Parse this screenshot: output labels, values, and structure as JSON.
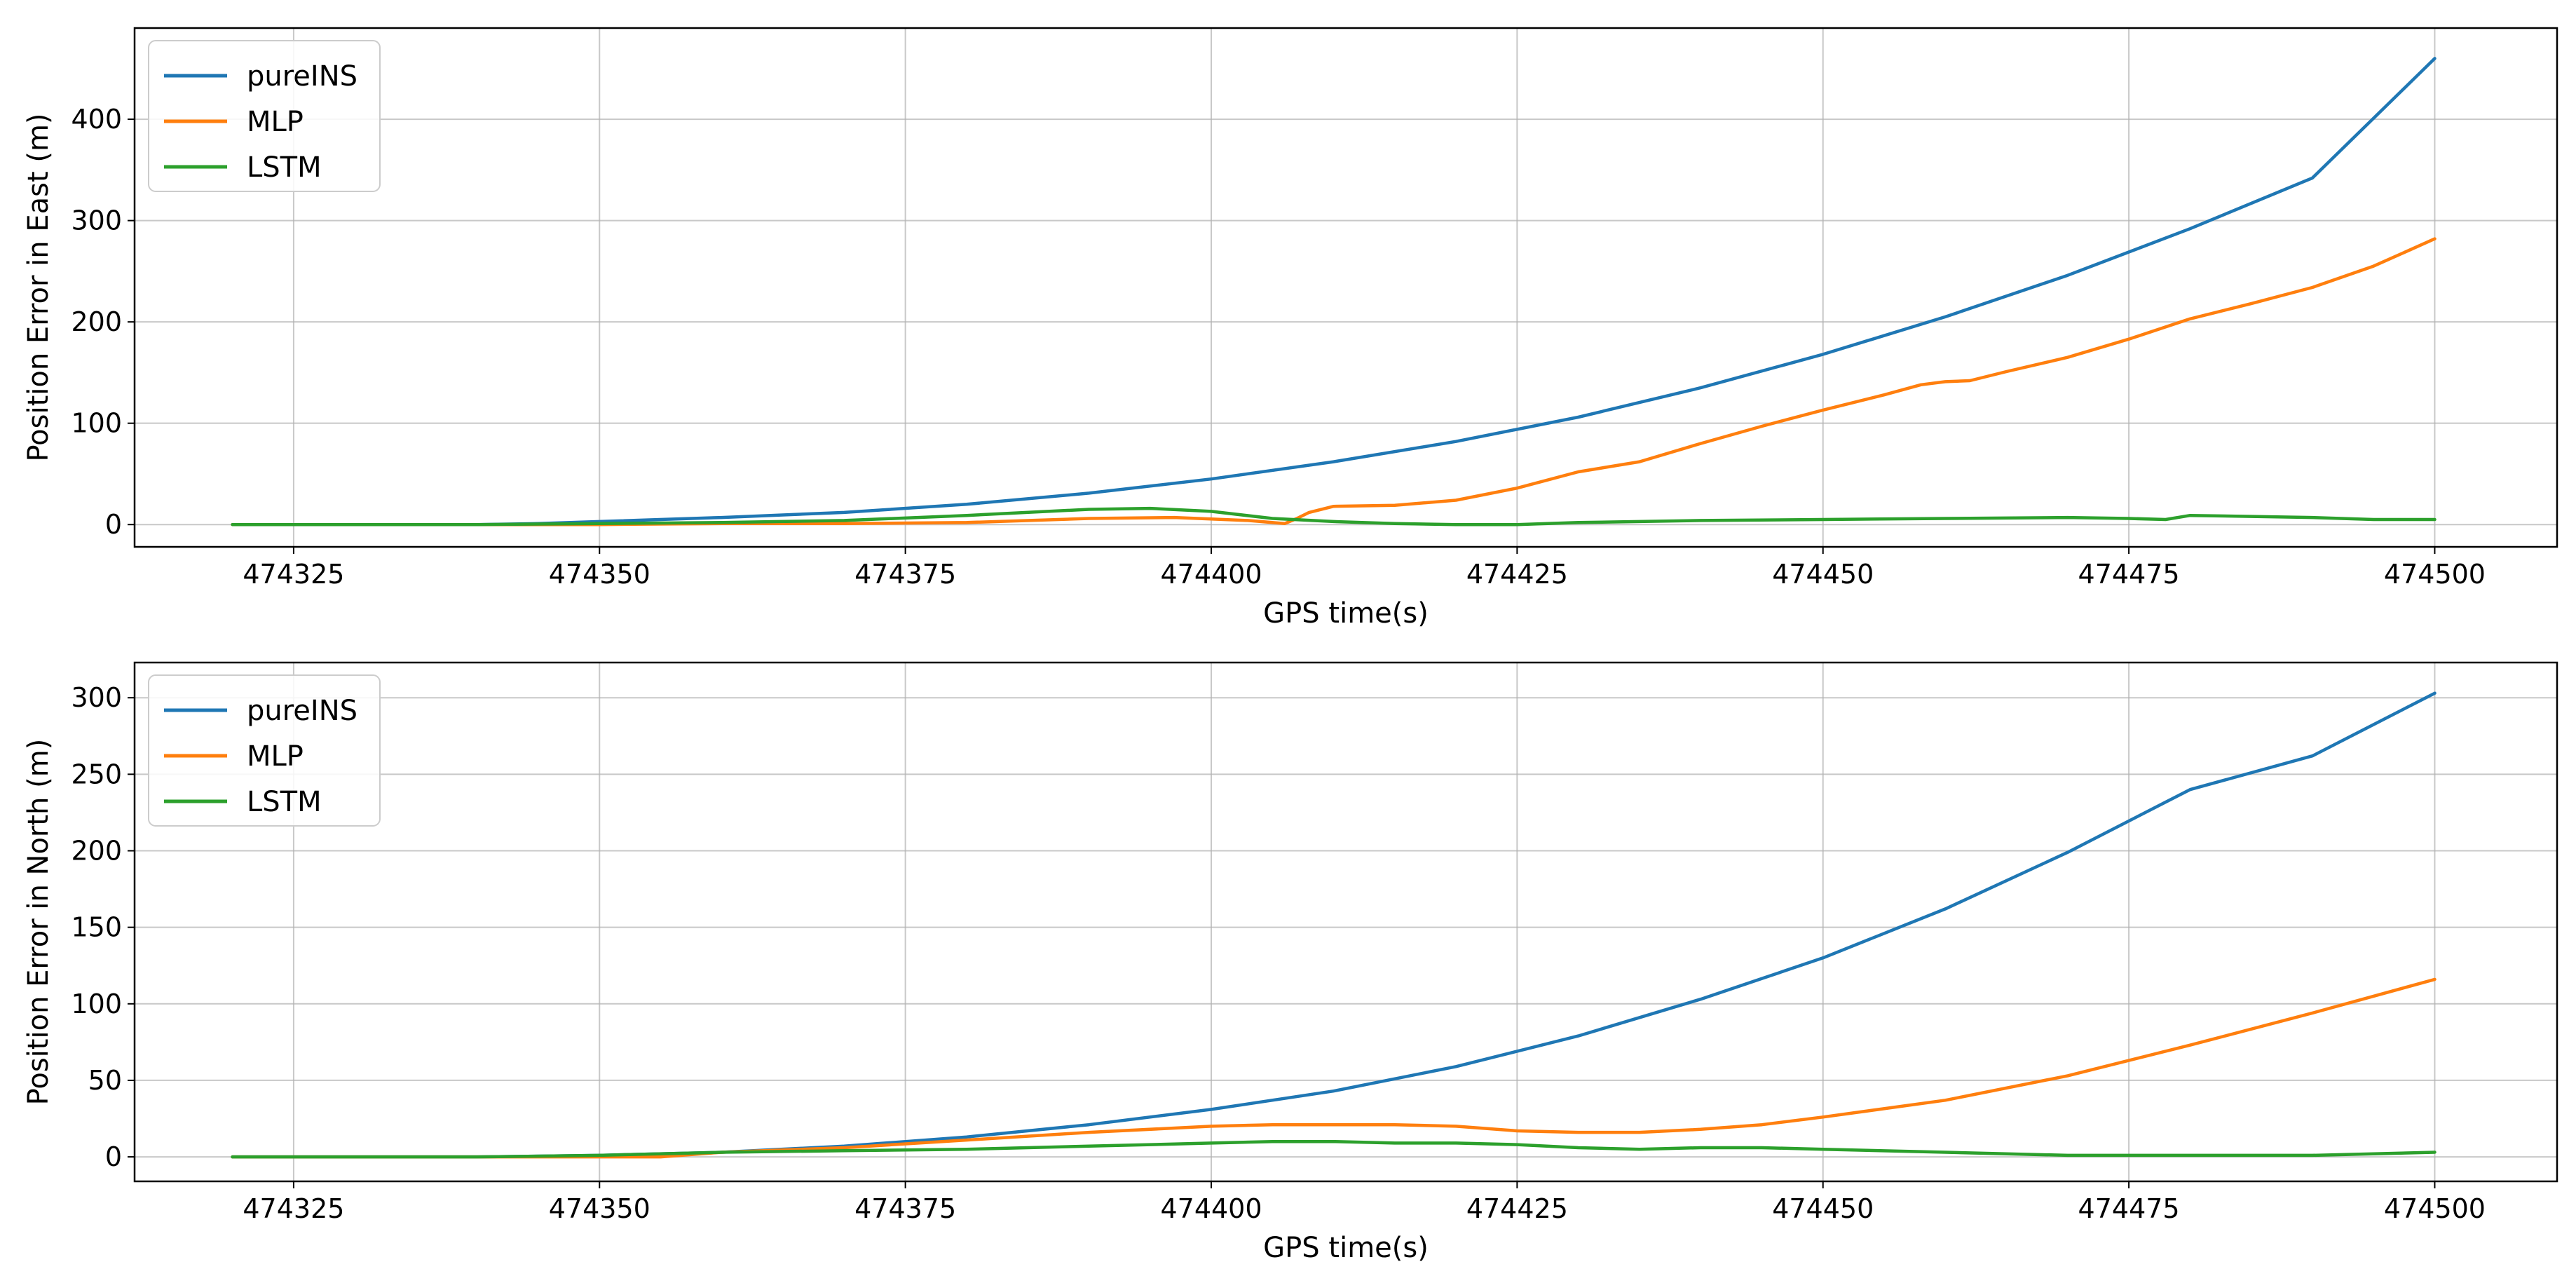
{
  "colors": {
    "pureINS": "#1f77b4",
    "MLP": "#ff7f0e",
    "LSTM": "#2ca02c",
    "grid": "#b0b0b0",
    "axes": "#000000"
  },
  "chart_data": [
    {
      "type": "line",
      "xlabel": "GPS time(s)",
      "ylabel": "Position Error in East (m)",
      "xlim": [
        474312,
        474510
      ],
      "ylim": [
        -22,
        490
      ],
      "xticks": [
        474325,
        474350,
        474375,
        474400,
        474425,
        474450,
        474475,
        474500
      ],
      "xtick_labels": [
        "474325",
        "474350",
        "474375",
        "474400",
        "474425",
        "474450",
        "474475",
        "474500"
      ],
      "yticks": [
        0,
        100,
        200,
        300,
        400
      ],
      "ytick_labels": [
        "0",
        "100",
        "200",
        "300",
        "400"
      ],
      "grid": true,
      "legend": "top-left",
      "series": [
        {
          "name": "pureINS",
          "color": "#1f77b4",
          "x": [
            474320,
            474340,
            474345,
            474350,
            474360,
            474370,
            474380,
            474390,
            474400,
            474410,
            474420,
            474430,
            474440,
            474450,
            474460,
            474470,
            474480,
            474490,
            474500
          ],
          "y": [
            0,
            0,
            1,
            3,
            7,
            12,
            20,
            31,
            45,
            62,
            82,
            106,
            135,
            168,
            205,
            246,
            292,
            342,
            460
          ]
        },
        {
          "name": "MLP",
          "color": "#ff7f0e",
          "x": [
            474320,
            474340,
            474350,
            474360,
            474370,
            474380,
            474390,
            474397,
            474403,
            474406,
            474407,
            474408,
            474410,
            474415,
            474420,
            474425,
            474430,
            474435,
            474440,
            474445,
            474450,
            474455,
            474458,
            474460,
            474462,
            474465,
            474470,
            474475,
            474480,
            474485,
            474490,
            474495,
            474500
          ],
          "y": [
            0,
            0,
            0,
            1,
            1,
            2,
            6,
            7,
            4,
            1,
            6,
            12,
            18,
            19,
            24,
            36,
            52,
            62,
            80,
            97,
            113,
            128,
            138,
            141,
            142,
            151,
            165,
            183,
            203,
            218,
            234,
            255,
            282
          ]
        },
        {
          "name": "LSTM",
          "color": "#2ca02c",
          "x": [
            474320,
            474340,
            474350,
            474360,
            474370,
            474380,
            474390,
            474395,
            474400,
            474405,
            474410,
            474415,
            474420,
            474425,
            474430,
            474440,
            474450,
            474460,
            474470,
            474475,
            474478,
            474480,
            474485,
            474490,
            474495,
            474500
          ],
          "y": [
            0,
            0,
            1,
            2,
            4,
            9,
            15,
            16,
            13,
            6,
            3,
            1,
            0,
            0,
            2,
            4,
            5,
            6,
            7,
            6,
            5,
            9,
            8,
            7,
            5,
            5
          ]
        }
      ]
    },
    {
      "type": "line",
      "xlabel": "GPS time(s)",
      "ylabel": "Position Error in North (m)",
      "xlim": [
        474312,
        474510
      ],
      "ylim": [
        -16,
        323
      ],
      "xticks": [
        474325,
        474350,
        474375,
        474400,
        474425,
        474450,
        474475,
        474500
      ],
      "xtick_labels": [
        "474325",
        "474350",
        "474375",
        "474400",
        "474425",
        "474450",
        "474475",
        "474500"
      ],
      "yticks": [
        0,
        50,
        100,
        150,
        200,
        250,
        300
      ],
      "ytick_labels": [
        "0",
        "50",
        "100",
        "150",
        "200",
        "250",
        "300"
      ],
      "grid": true,
      "legend": "top-left",
      "series": [
        {
          "name": "pureINS",
          "color": "#1f77b4",
          "x": [
            474320,
            474340,
            474350,
            474360,
            474370,
            474380,
            474390,
            474400,
            474410,
            474420,
            474430,
            474440,
            474450,
            474460,
            474470,
            474480,
            474490,
            474500
          ],
          "y": [
            0,
            0,
            1,
            3,
            7,
            13,
            21,
            31,
            43,
            59,
            79,
            103,
            130,
            162,
            199,
            240,
            262,
            303
          ]
        },
        {
          "name": "MLP",
          "color": "#ff7f0e",
          "x": [
            474320,
            474340,
            474350,
            474355,
            474360,
            474370,
            474380,
            474390,
            474400,
            474405,
            474410,
            474415,
            474420,
            474425,
            474430,
            474435,
            474440,
            474445,
            474450,
            474460,
            474470,
            474480,
            474490,
            474500
          ],
          "y": [
            0,
            0,
            0,
            0,
            3,
            6,
            11,
            16,
            20,
            21,
            21,
            21,
            20,
            17,
            16,
            16,
            18,
            21,
            26,
            37,
            53,
            73,
            94,
            116
          ]
        },
        {
          "name": "LSTM",
          "color": "#2ca02c",
          "x": [
            474320,
            474340,
            474350,
            474360,
            474370,
            474380,
            474390,
            474400,
            474405,
            474410,
            474415,
            474420,
            474425,
            474430,
            474435,
            474440,
            474445,
            474450,
            474460,
            474470,
            474480,
            474490,
            474500
          ],
          "y": [
            0,
            0,
            1,
            3,
            4,
            5,
            7,
            9,
            10,
            10,
            9,
            9,
            8,
            6,
            5,
            6,
            6,
            5,
            3,
            1,
            1,
            1,
            3
          ]
        }
      ]
    }
  ]
}
